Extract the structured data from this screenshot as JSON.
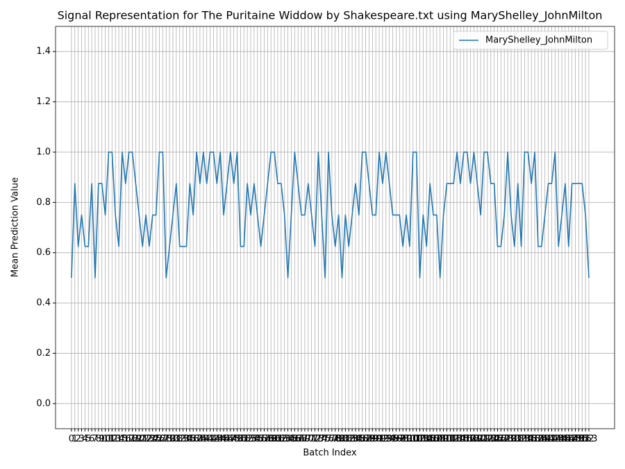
{
  "chart_data": {
    "type": "line",
    "title": "Signal Representation for The Puritaine Widdow by Shakespeare.txt using MaryShelley_JohnMilton",
    "xlabel": "Batch Index",
    "ylabel": "Mean Prediction Value",
    "x": [
      0,
      1,
      2,
      3,
      4,
      5,
      6,
      7,
      8,
      9,
      10,
      11,
      12,
      13,
      14,
      15,
      16,
      17,
      18,
      19,
      20,
      21,
      22,
      23,
      24,
      25,
      26,
      27,
      28,
      29,
      30,
      31,
      32,
      33,
      34,
      35,
      36,
      37,
      38,
      39,
      40,
      41,
      42,
      43,
      44,
      45,
      46,
      47,
      48,
      49,
      50,
      51,
      52,
      53,
      54,
      55,
      56,
      57,
      58,
      59,
      60,
      61,
      62,
      63,
      64,
      65,
      66,
      67,
      68,
      69,
      70,
      71,
      72,
      73,
      74,
      75,
      76,
      77,
      78,
      79,
      80,
      81,
      82,
      83,
      84,
      85,
      86,
      87,
      88,
      89,
      90,
      91,
      92,
      93,
      94,
      95,
      96,
      97,
      98,
      99,
      100,
      101,
      102,
      103,
      104,
      105,
      106,
      107,
      108,
      109,
      110,
      111,
      112,
      113,
      114,
      115,
      116,
      117,
      118,
      119,
      120,
      121,
      122,
      123,
      124,
      125,
      126,
      127,
      128,
      129,
      130,
      131,
      132,
      133,
      134,
      135,
      136,
      137,
      138,
      139,
      140,
      141,
      142,
      143,
      144,
      145,
      146,
      147,
      148,
      149,
      150,
      151,
      152,
      153
    ],
    "series": [
      {
        "name": "MaryShelley_JohnMilton",
        "color": "#1f77b4",
        "values": [
          0.5,
          0.875,
          0.625,
          0.75,
          0.625,
          0.625,
          0.875,
          0.5,
          0.875,
          0.875,
          0.75,
          1.0,
          1.0,
          0.75,
          0.625,
          1.0,
          0.875,
          1.0,
          1.0,
          0.875,
          0.75,
          0.625,
          0.75,
          0.625,
          0.75,
          0.75,
          1.0,
          1.0,
          0.5,
          0.625,
          0.75,
          0.875,
          0.625,
          0.625,
          0.625,
          0.875,
          0.75,
          1.0,
          0.875,
          1.0,
          0.875,
          1.0,
          1.0,
          0.875,
          1.0,
          0.75,
          0.875,
          1.0,
          0.875,
          1.0,
          0.625,
          0.625,
          0.875,
          0.75,
          0.875,
          0.75,
          0.625,
          0.75,
          0.875,
          1.0,
          1.0,
          0.875,
          0.875,
          0.75,
          0.5,
          0.75,
          1.0,
          0.875,
          0.75,
          0.75,
          0.875,
          0.75,
          0.625,
          1.0,
          0.75,
          0.5,
          1.0,
          0.75,
          0.625,
          0.75,
          0.5,
          0.75,
          0.625,
          0.75,
          0.875,
          0.75,
          1.0,
          1.0,
          0.875,
          0.75,
          0.75,
          1.0,
          0.875,
          1.0,
          0.875,
          0.75,
          0.75,
          0.75,
          0.625,
          0.75,
          0.625,
          1.0,
          1.0,
          0.5,
          0.75,
          0.625,
          0.875,
          0.75,
          0.75,
          0.5,
          0.75,
          0.875,
          0.875,
          0.875,
          1.0,
          0.875,
          1.0,
          1.0,
          0.875,
          1.0,
          0.875,
          0.75,
          1.0,
          1.0,
          0.875,
          0.875,
          0.625,
          0.625,
          0.75,
          1.0,
          0.75,
          0.625,
          0.875,
          0.625,
          1.0,
          1.0,
          0.875,
          1.0,
          0.625,
          0.625,
          0.75,
          0.875,
          0.875,
          1.0,
          0.625,
          0.75,
          0.875,
          0.625,
          0.875,
          0.875,
          0.875,
          0.875,
          0.75,
          0.5
        ]
      }
    ],
    "xlim": [
      -4.7,
      160.6
    ],
    "xticks": [
      0,
      1,
      2,
      3,
      4,
      5,
      6,
      7,
      8,
      9,
      10,
      11,
      12,
      13,
      14,
      15,
      16,
      17,
      18,
      19,
      20,
      21,
      22,
      23,
      24,
      25,
      26,
      27,
      28,
      29,
      30,
      31,
      32,
      33,
      34,
      35,
      36,
      37,
      38,
      39,
      40,
      41,
      42,
      43,
      44,
      45,
      46,
      47,
      48,
      49,
      50,
      51,
      52,
      53,
      54,
      55,
      56,
      57,
      58,
      59,
      60,
      61,
      62,
      63,
      64,
      65,
      66,
      67,
      68,
      69,
      70,
      71,
      72,
      73,
      74,
      75,
      76,
      77,
      78,
      79,
      80,
      81,
      82,
      83,
      84,
      85,
      86,
      87,
      88,
      89,
      90,
      91,
      92,
      93,
      94,
      95,
      96,
      97,
      98,
      99,
      100,
      101,
      102,
      103,
      104,
      105,
      106,
      107,
      108,
      109,
      110,
      111,
      112,
      113,
      114,
      115,
      116,
      117,
      118,
      119,
      120,
      121,
      122,
      123,
      124,
      125,
      126,
      127,
      128,
      129,
      130,
      131,
      132,
      133,
      134,
      135,
      136,
      137,
      138,
      139,
      140,
      141,
      142,
      143,
      144,
      145,
      146,
      147,
      148,
      149,
      150,
      151,
      152,
      153
    ],
    "ylim": [
      -0.1,
      1.5
    ],
    "yticks": [
      {
        "value": 0,
        "label": "0.0"
      },
      {
        "value": 0.2,
        "label": "0.2"
      },
      {
        "value": 0.4,
        "label": "0.4"
      },
      {
        "value": 0.6,
        "label": "0.6"
      },
      {
        "value": 0.8,
        "label": "0.8"
      },
      {
        "value": 1.0,
        "label": "1.0"
      },
      {
        "value": 1.2,
        "label": "1.2"
      },
      {
        "value": 1.4,
        "label": "1.4"
      }
    ],
    "grid": true,
    "legend": "upper right"
  }
}
